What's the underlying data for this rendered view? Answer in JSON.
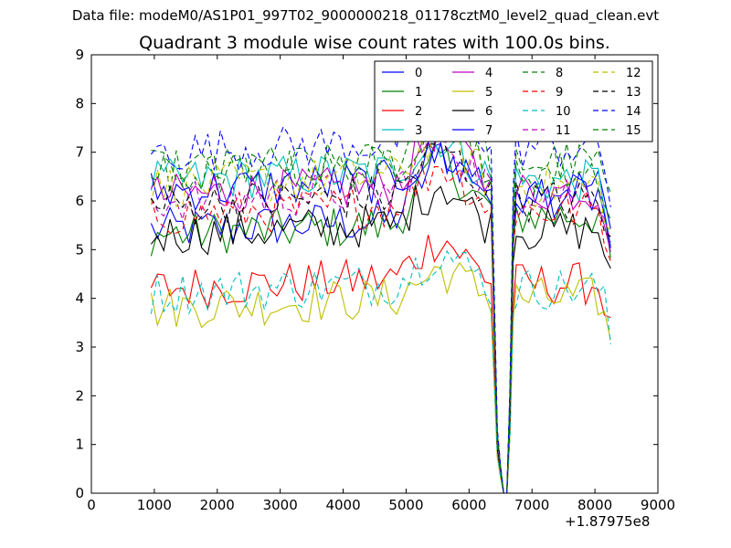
{
  "header": {
    "data_file": "Data file: modeM0/AS1P01_997T02_9000000218_01178cztM0_level2_quad_clean.evt",
    "plot_title": "Quadrant 3 module wise count rates with 100.0s bins."
  },
  "chart_data": {
    "type": "line",
    "title": "Quadrant 3 module wise count rates with 100.0s bins.",
    "xlabel": "",
    "ylabel": "",
    "x_offset_label": "+1.87975e8",
    "xlim": [
      0,
      9000
    ],
    "ylim": [
      0,
      9
    ],
    "xticks": [
      0,
      1000,
      2000,
      3000,
      4000,
      5000,
      6000,
      7000,
      8000,
      9000
    ],
    "yticks": [
      0,
      1,
      2,
      3,
      4,
      5,
      6,
      7,
      8,
      9
    ],
    "x_start": 950,
    "x_step": 100,
    "n_points": 74,
    "gap_profile": {
      "x": [
        6400,
        6450,
        6500,
        6550,
        6600,
        6650,
        6700,
        6750,
        6800
      ],
      "factor": [
        1.0,
        0.18,
        0.08,
        0.0,
        0.0,
        0.3,
        0.88,
        1.0,
        1.0
      ]
    },
    "legend_position": "top-right",
    "legend_columns": 4,
    "series": [
      {
        "name": "0",
        "color": "#0000ff",
        "style": "solid",
        "base": 5.4,
        "late": 6.3,
        "peak": 7.0
      },
      {
        "name": "1",
        "color": "#008000",
        "style": "solid",
        "base": 5.3,
        "late": 5.7,
        "peak": 6.9
      },
      {
        "name": "2",
        "color": "#ff0000",
        "style": "solid",
        "base": 4.2,
        "late": 4.3,
        "peak": 5.3
      },
      {
        "name": "3",
        "color": "#00bfbf",
        "style": "solid",
        "base": 6.4,
        "late": 6.4,
        "peak": 7.3
      },
      {
        "name": "4",
        "color": "#bf00bf",
        "style": "solid",
        "base": 6.1,
        "late": 6.2,
        "peak": 7.6
      },
      {
        "name": "5",
        "color": "#bfbf00",
        "style": "solid",
        "base": 3.8,
        "late": 4.0,
        "peak": 4.6
      },
      {
        "name": "6",
        "color": "#000000",
        "style": "solid",
        "base": 5.3,
        "late": 5.4,
        "peak": 6.4
      },
      {
        "name": "7",
        "color": "#0000ff",
        "style": "solid",
        "base": 6.2,
        "late": 6.1,
        "peak": 7.0
      },
      {
        "name": "8",
        "color": "#008000",
        "style": "dashed",
        "base": 6.6,
        "late": 6.8,
        "peak": 8.0
      },
      {
        "name": "9",
        "color": "#ff0000",
        "style": "dashed",
        "base": 5.7,
        "late": 5.8,
        "peak": 6.8
      },
      {
        "name": "10",
        "color": "#00bfbf",
        "style": "dashed",
        "base": 4.1,
        "late": 4.2,
        "peak": 5.0
      },
      {
        "name": "11",
        "color": "#bf00bf",
        "style": "dashed",
        "base": 6.0,
        "late": 6.2,
        "peak": 7.4
      },
      {
        "name": "12",
        "color": "#bfbf00",
        "style": "dashed",
        "base": 6.3,
        "late": 6.3,
        "peak": 7.5
      },
      {
        "name": "13",
        "color": "#000000",
        "style": "dashed",
        "base": 5.9,
        "late": 6.0,
        "peak": 7.2
      },
      {
        "name": "14",
        "color": "#0000ff",
        "style": "dashed",
        "base": 7.0,
        "late": 7.1,
        "peak": 8.4
      },
      {
        "name": "15",
        "color": "#008000",
        "style": "dashed",
        "base": 6.5,
        "late": 6.6,
        "peak": 7.9
      }
    ]
  }
}
